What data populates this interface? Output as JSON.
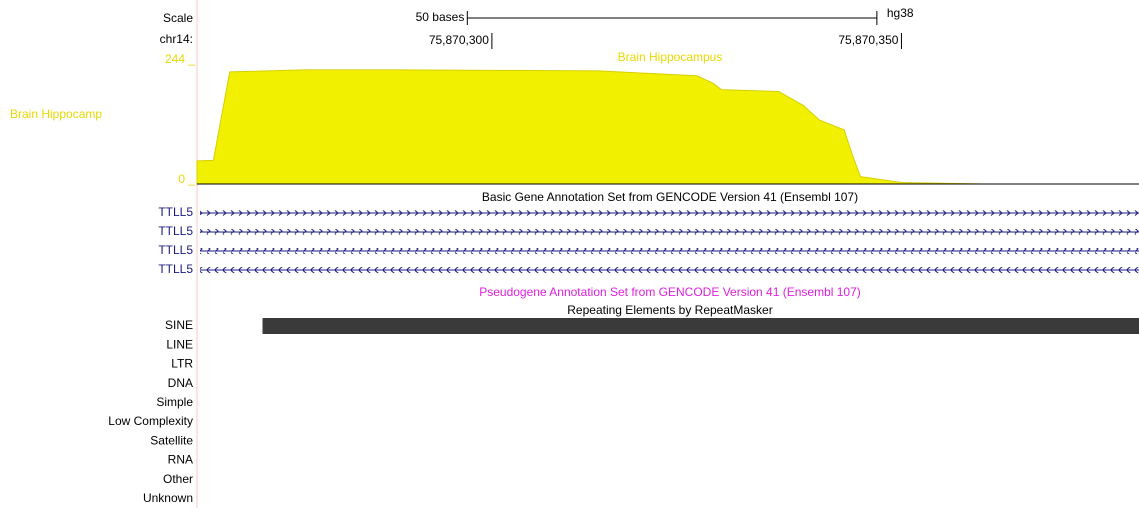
{
  "view": {
    "xlim": [
      75870264,
      75870379
    ]
  },
  "scale": {
    "label": "Scale",
    "bar_label": "50 bases",
    "bar": [
      75870297,
      75870347
    ],
    "assembly": "hg38"
  },
  "chrom": {
    "label": "chr14:",
    "ticks": [
      {
        "value": 75870300,
        "label": "75,870,300"
      },
      {
        "value": 75870350,
        "label": "75,870,350"
      }
    ]
  },
  "signal_track": {
    "title": "Brain Hippocampus",
    "short_label": "Brain Hippocamp",
    "color": "#f0f000",
    "ylim": [
      0,
      244
    ],
    "yticks": [
      {
        "value": 244,
        "label": "244 _"
      },
      {
        "value": 0,
        "label": "0 _"
      }
    ],
    "x": [
      75870264,
      75870266,
      75870268,
      75870277,
      75870289,
      75870313,
      75870325,
      75870327,
      75870328,
      75870335,
      75870338,
      75870340,
      75870343,
      75870344,
      75870345,
      75870350,
      75870360,
      75870379
    ],
    "values": [
      47,
      48,
      228,
      232,
      232,
      230,
      220,
      205,
      192,
      188,
      160,
      130,
      110,
      60,
      15,
      3,
      0,
      0
    ]
  },
  "gene_track": {
    "title": "Basic Gene Annotation Set from GENCODE Version 41 (Ensembl 107)",
    "genes": [
      "TTLL5",
      "TTLL5",
      "TTLL5",
      "TTLL5"
    ]
  },
  "pseudogene_track": {
    "title": "Pseudogene Annotation Set from GENCODE Version 41 (Ensembl 107)"
  },
  "repeat_track": {
    "title": "Repeating Elements by RepeatMasker",
    "classes": [
      "SINE",
      "LINE",
      "LTR",
      "DNA",
      "Simple",
      "Low Complexity",
      "Satellite",
      "RNA",
      "Other",
      "Unknown"
    ],
    "elements": [
      {
        "class": 0,
        "start": 75870272
      }
    ]
  }
}
